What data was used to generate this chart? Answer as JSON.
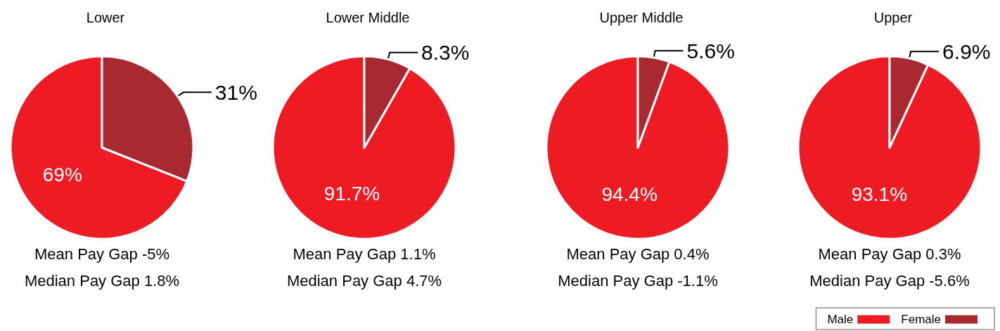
{
  "chart_data": [
    {
      "type": "pie",
      "title": "Lower",
      "categories": [
        null,
        null
      ],
      "values": [
        69,
        31
      ],
      "colors": [
        "#ed1c24",
        "#a82a30"
      ],
      "value_labels": [
        "69%",
        "31%"
      ],
      "annotations": [
        "Mean Pay Gap -5%",
        "Median Pay Gap 1.8%"
      ],
      "legend": false
    },
    {
      "type": "pie",
      "title": "Lower Middle",
      "categories": [
        null,
        null
      ],
      "values": [
        91.7,
        8.3
      ],
      "colors": [
        "#ed1c24",
        "#a82a30"
      ],
      "value_labels": [
        "91.7%",
        "8.3%"
      ],
      "annotations": [
        "Mean Pay Gap 1.1%",
        "Median Pay Gap 4.7%"
      ],
      "legend": false
    },
    {
      "type": "pie",
      "title": "Upper Middle",
      "categories": [
        null,
        null
      ],
      "values": [
        94.4,
        5.6
      ],
      "colors": [
        "#ed1c24",
        "#a82a30"
      ],
      "value_labels": [
        "94.4%",
        "5.6%"
      ],
      "annotations": [
        "Mean Pay Gap 0.4%",
        "Median Pay Gap -1.1%"
      ],
      "legend": false
    },
    {
      "type": "pie",
      "title": "Upper",
      "categories": [
        "Male",
        "Female"
      ],
      "values": [
        93.1,
        6.9
      ],
      "colors": [
        "#ed1c24",
        "#a82a30"
      ],
      "value_labels": [
        "93.1%",
        "6.9%"
      ],
      "annotations": [
        "Mean Pay Gap 0.3%",
        "Median Pay Gap -5.6%"
      ],
      "legend": "bottom right"
    }
  ]
}
